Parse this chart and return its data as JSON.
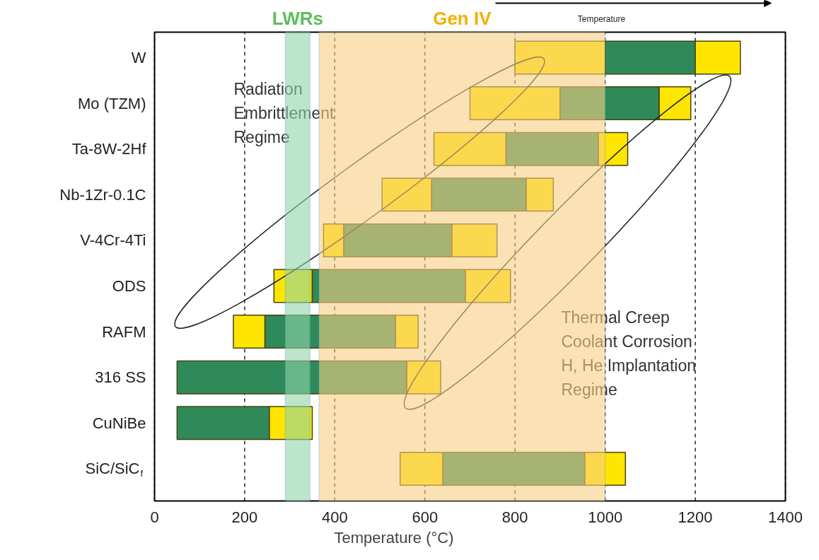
{
  "chart_data": {
    "type": "bar",
    "orientation": "horizontal",
    "categories": [
      "W",
      "Mo (TZM)",
      "Ta-8W-2Hf",
      "Nb-1Zr-0.1C",
      "V-4Cr-4Ti",
      "ODS",
      "RAFM",
      "316 SS",
      "CuNiBe",
      "SiC/SiC$_{f}$"
    ],
    "series": [
      {
        "color": "#ffe600",
        "base": [
          800,
          700,
          620,
          505,
          375,
          265,
          175,
          null,
          null,
          545
        ],
        "values": [
          200,
          200,
          160,
          110,
          45,
          85,
          70,
          null,
          null,
          95
        ]
      },
      {
        "color": "#2f8a5a",
        "base": [
          1000,
          900,
          780,
          615,
          420,
          350,
          245,
          50,
          50,
          640
        ],
        "values": [
          200,
          220,
          205,
          210,
          240,
          340,
          290,
          510,
          205,
          315
        ]
      },
      {
        "color": "#ffe600",
        "base": [
          1200,
          1120,
          985,
          825,
          660,
          690,
          535,
          560,
          255,
          955
        ],
        "values": [
          100,
          70,
          65,
          60,
          100,
          100,
          50,
          75,
          95,
          90
        ]
      }
    ],
    "xlabel": "Temperature (°C)",
    "xlim": [
      0,
      1400
    ],
    "xticks": [
      0,
      200,
      400,
      600,
      800,
      1000,
      1200,
      1400
    ],
    "grid": "x",
    "line_style": "dashed",
    "bands": [
      {
        "axis": "x",
        "from": 290,
        "to": 345,
        "label": "LWRs",
        "color": "#8fd4a8"
      },
      {
        "axis": "x",
        "from": 365,
        "to": 1000,
        "label": "Gen IV",
        "color": "#f9cf82"
      }
    ],
    "annotations": [
      "Radiation\nEmbrittlement\nRegime",
      "Thermal Creep\nCoolant Corrosion\nH, He Implantation\nRegime",
      "Temperature"
    ]
  }
}
